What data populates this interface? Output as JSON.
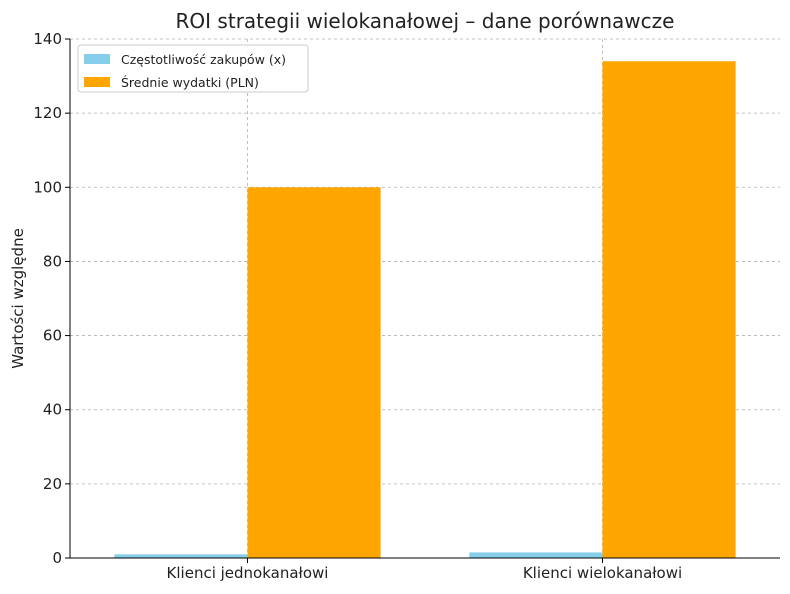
{
  "chart_data": {
    "type": "bar",
    "title": "ROI strategii wielokanałowej – dane porównawcze",
    "xlabel": "",
    "ylabel": "Wartości względne",
    "categories": [
      "Klienci jednokanałowi",
      "Klienci wielokanałowi"
    ],
    "series": [
      {
        "name": "Częstotliwość zakupów (x)",
        "values": [
          1.0,
          1.5
        ],
        "color": "#87CEEB"
      },
      {
        "name": "Średnie wydatki (PLN)",
        "values": [
          100,
          134
        ],
        "color": "#FFA500"
      }
    ],
    "ylim": [
      0,
      140
    ],
    "yticks": [
      0,
      20,
      40,
      60,
      80,
      100,
      120,
      140
    ],
    "grid": true,
    "legend": "top-left"
  }
}
